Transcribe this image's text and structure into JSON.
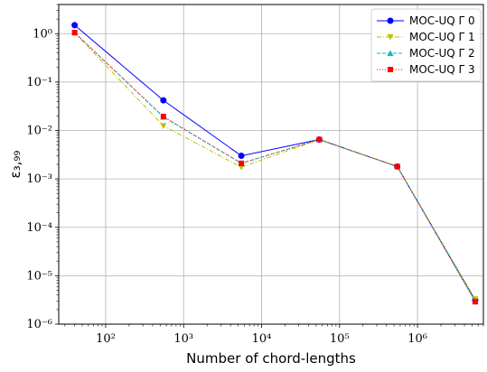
{
  "chart_data": {
    "type": "line",
    "xscale": "log",
    "yscale": "log",
    "xlabel": "Number of chord-lengths",
    "ylabel": "ε₃,₉₉",
    "xlim": [
      25,
      7000000
    ],
    "ylim": [
      1e-06,
      4
    ],
    "x_ticks": [
      {
        "value": 100,
        "label": "10²"
      },
      {
        "value": 1000,
        "label": "10³"
      },
      {
        "value": 10000,
        "label": "10⁴"
      },
      {
        "value": 100000,
        "label": "10⁵"
      },
      {
        "value": 1000000,
        "label": "10⁶"
      }
    ],
    "y_ticks": [
      {
        "value": 1,
        "label": "10⁰"
      },
      {
        "value": 0.1,
        "label": "10⁻¹"
      },
      {
        "value": 0.01,
        "label": "10⁻²"
      },
      {
        "value": 0.001,
        "label": "10⁻³"
      },
      {
        "value": 0.0001,
        "label": "10⁻⁴"
      },
      {
        "value": 1e-05,
        "label": "10⁻⁵"
      },
      {
        "value": 1e-06,
        "label": "10⁻⁶"
      }
    ],
    "grid": true,
    "legend_position": "top-right",
    "x": [
      40,
      550,
      5500,
      55000,
      550000,
      5500000
    ],
    "series": [
      {
        "name": "MOC-UQ Γ 0",
        "color": "#0000ff",
        "marker": "circle",
        "linestyle": "solid",
        "values": [
          1.5,
          0.042,
          0.003,
          0.0065,
          0.0018,
          3.1e-06
        ]
      },
      {
        "name": "MOC-UQ Γ 1",
        "color": "#bfbf00",
        "marker": "triangle-down",
        "linestyle": "dashdot",
        "values": [
          1.05,
          0.0125,
          0.00175,
          0.0065,
          0.0018,
          3.3e-06
        ]
      },
      {
        "name": "MOC-UQ Γ 2",
        "color": "#00bfbf",
        "marker": "triangle-up",
        "linestyle": "dashed",
        "values": [
          1.05,
          0.019,
          0.0021,
          0.0065,
          0.0018,
          3e-06
        ]
      },
      {
        "name": "MOC-UQ Γ 3",
        "color": "#ff0000",
        "marker": "square",
        "linestyle": "dotted",
        "values": [
          1.05,
          0.0195,
          0.0021,
          0.0065,
          0.0018,
          2.9e-06
        ]
      }
    ]
  }
}
